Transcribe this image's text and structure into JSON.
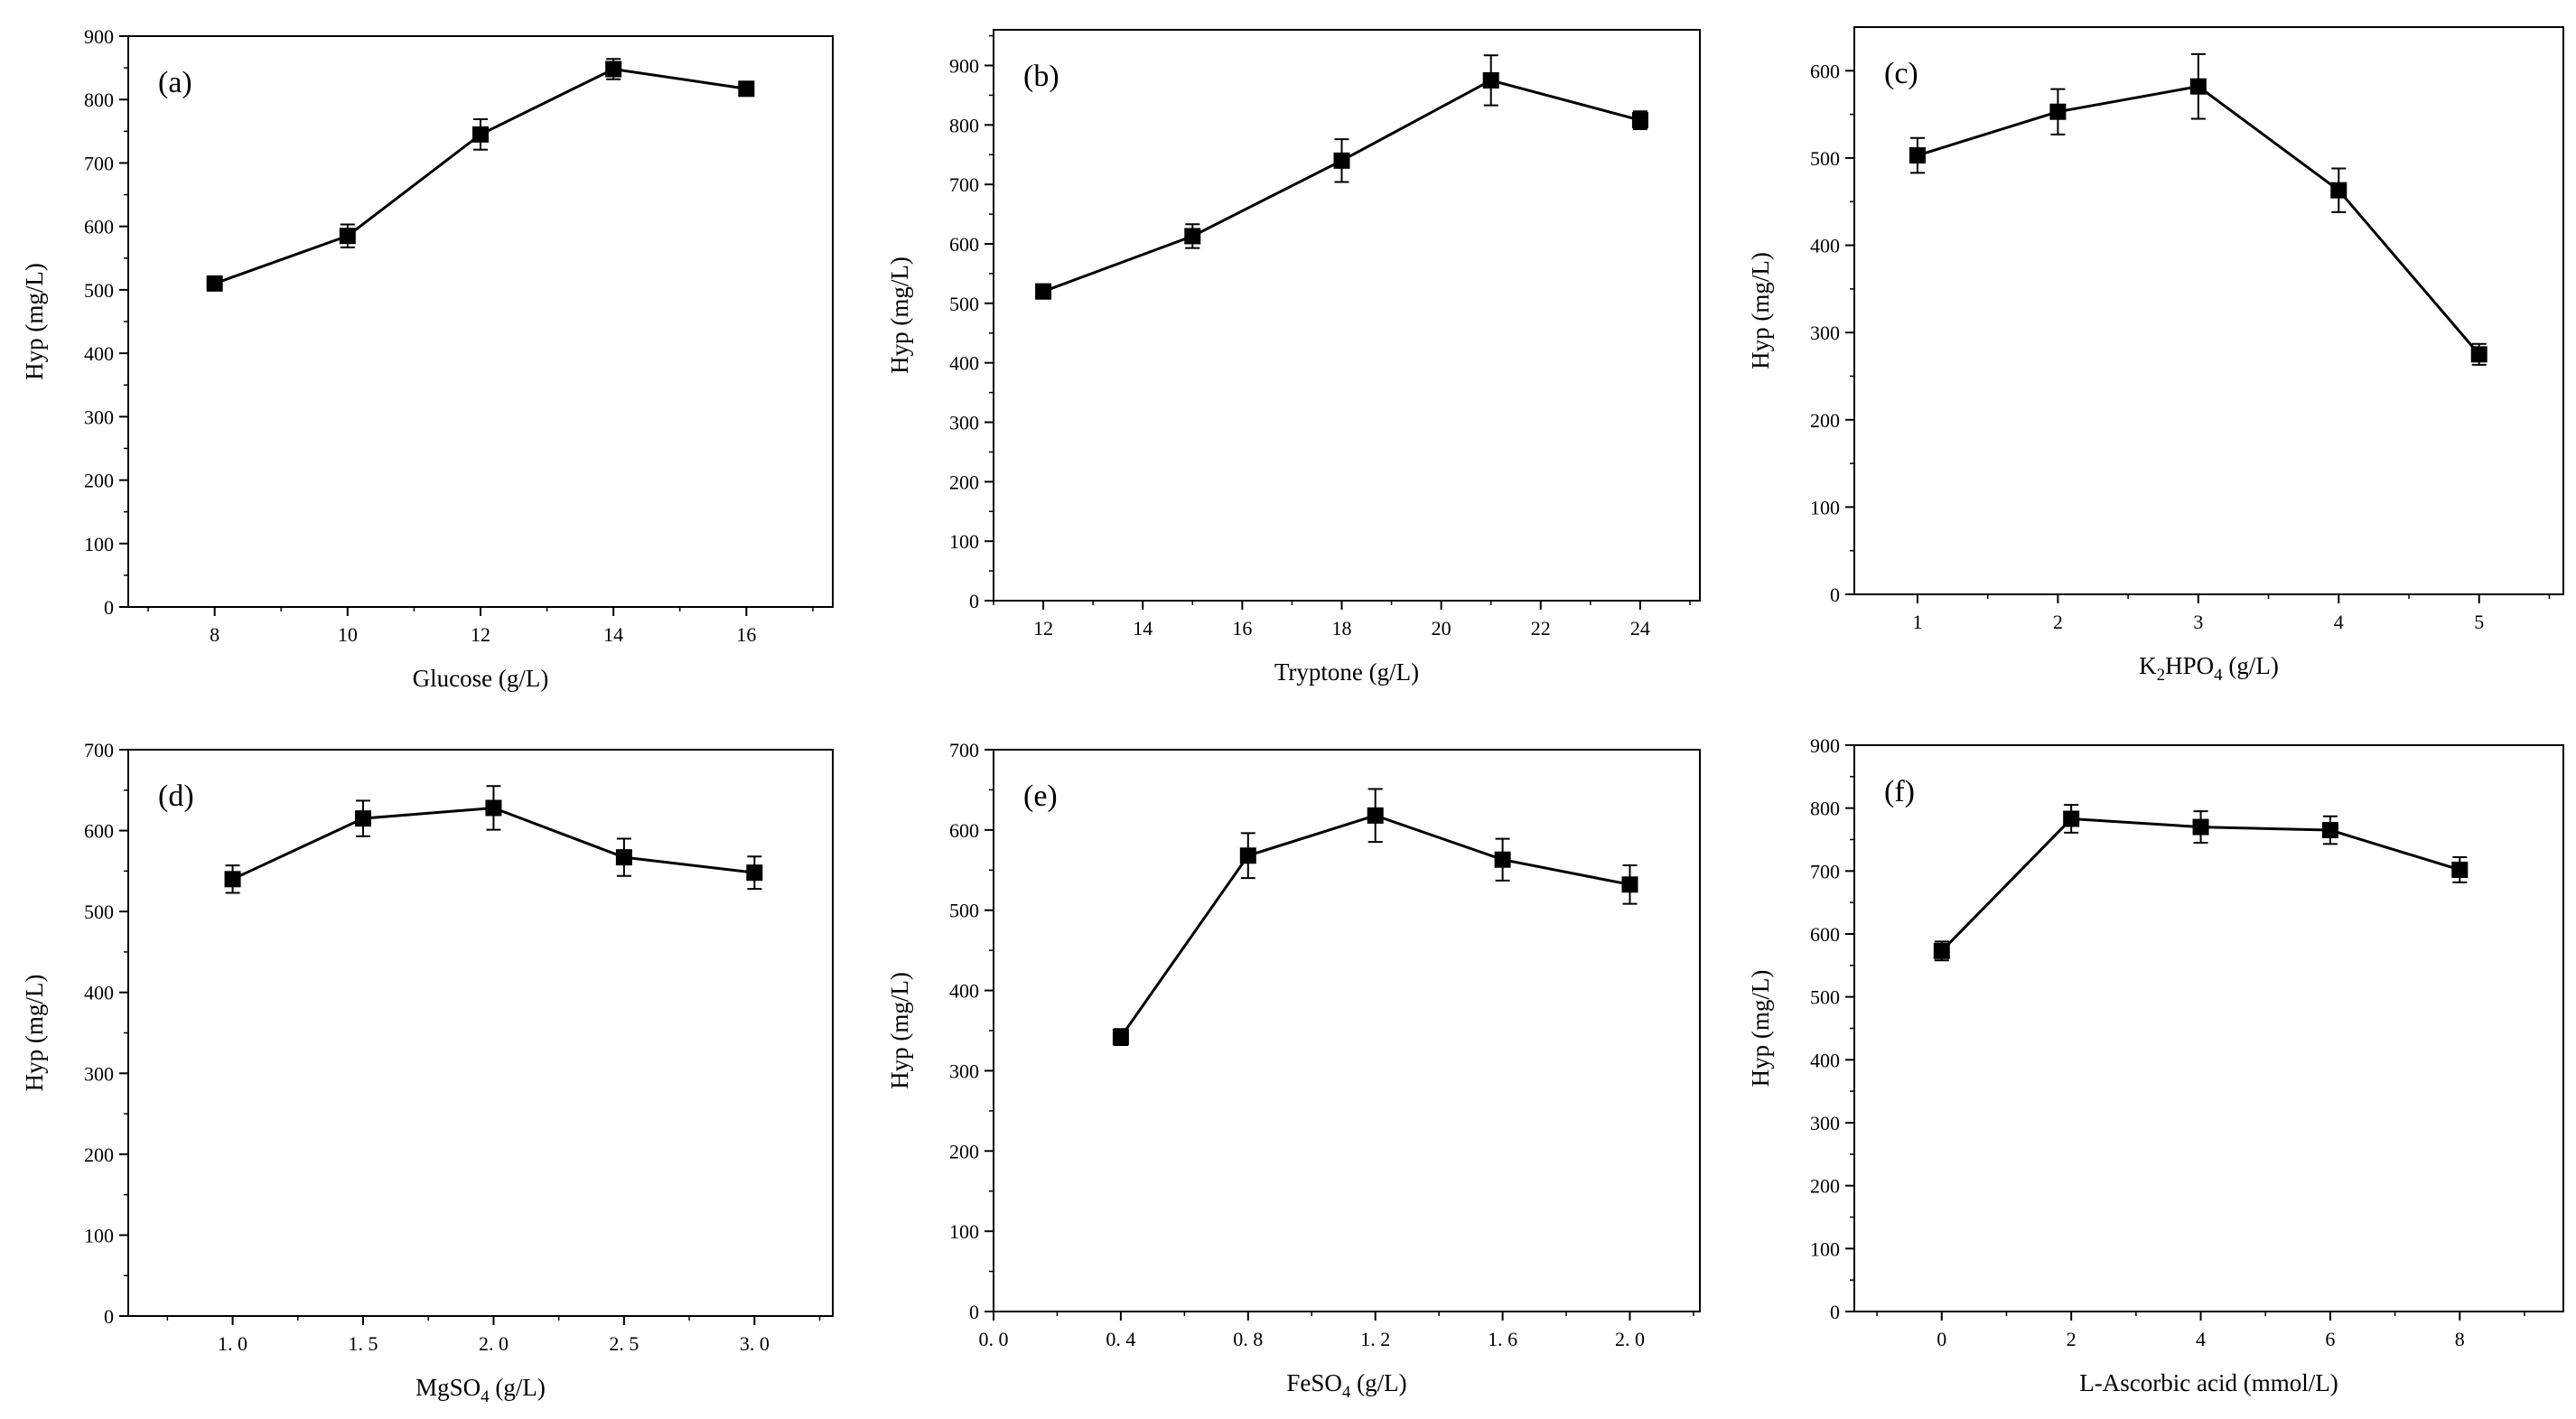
{
  "chart_data": [
    {
      "type": "line",
      "panel_label": "(a)",
      "xlabel": [
        {
          "t": "Glucose (g/L)"
        }
      ],
      "ylabel": "Hyp (mg/L)",
      "xlim": [
        6.7,
        17.3
      ],
      "ylim": [
        0,
        900
      ],
      "xticks": [
        8,
        10,
        12,
        14,
        16
      ],
      "xtick_labels": [
        "8",
        "10",
        "12",
        "14",
        "16"
      ],
      "yticks": [
        0,
        100,
        200,
        300,
        400,
        500,
        600,
        700,
        800,
        900
      ],
      "x": [
        8,
        10,
        12,
        14,
        16
      ],
      "y": [
        510,
        585,
        745,
        848,
        817
      ],
      "error": [
        9,
        18,
        24,
        16,
        6
      ]
    },
    {
      "type": "line",
      "panel_label": "(b)",
      "xlabel": [
        {
          "t": "Tryptone (g/L)"
        }
      ],
      "ylabel": "Hyp (mg/L)",
      "xlim": [
        11,
        25.2
      ],
      "ylim": [
        0,
        960
      ],
      "xticks": [
        12,
        14,
        16,
        18,
        20,
        22,
        24
      ],
      "xtick_labels": [
        "12",
        "14",
        "16",
        "18",
        "20",
        "22",
        "24"
      ],
      "yticks": [
        0,
        100,
        200,
        300,
        400,
        500,
        600,
        700,
        800,
        900
      ],
      "x": [
        12,
        15,
        18,
        21,
        24
      ],
      "y": [
        520,
        613,
        740,
        875,
        808
      ],
      "error": [
        12,
        20,
        36,
        42,
        15
      ]
    },
    {
      "type": "line",
      "panel_label": "(c)",
      "xlabel": [
        {
          "t": "K"
        },
        {
          "t": "2",
          "sub": true
        },
        {
          "t": "HPO"
        },
        {
          "t": "4",
          "sub": true
        },
        {
          "t": " (g/L)"
        }
      ],
      "ylabel": "Hyp (mg/L)",
      "xlim": [
        0.55,
        5.6
      ],
      "ylim": [
        0,
        650
      ],
      "xticks": [
        1,
        2,
        3,
        4,
        5
      ],
      "xtick_labels": [
        "1",
        "2",
        "3",
        "4",
        "5"
      ],
      "yticks": [
        0,
        100,
        200,
        300,
        400,
        500,
        600
      ],
      "x": [
        1,
        2,
        3,
        4,
        5
      ],
      "y": [
        503,
        553,
        582,
        463,
        275
      ],
      "error": [
        20,
        26,
        37,
        25,
        12
      ]
    },
    {
      "type": "line",
      "panel_label": "(d)",
      "xlabel": [
        {
          "t": "MgSO"
        },
        {
          "t": "4",
          "sub": true
        },
        {
          "t": " (g/L)"
        }
      ],
      "ylabel": "Hyp (mg/L)",
      "xlim": [
        0.6,
        3.3
      ],
      "ylim": [
        0,
        700
      ],
      "xticks": [
        1.0,
        1.5,
        2.0,
        2.5,
        3.0
      ],
      "xtick_labels": [
        "1. 0",
        "1. 5",
        "2. 0",
        "2. 5",
        "3. 0"
      ],
      "yticks": [
        0,
        100,
        200,
        300,
        400,
        500,
        600,
        700
      ],
      "x": [
        1.0,
        1.5,
        2.0,
        2.5,
        3.0
      ],
      "y": [
        540,
        615,
        628,
        567,
        548
      ],
      "error": [
        17,
        22,
        27,
        23,
        20
      ]
    },
    {
      "type": "line",
      "panel_label": "(e)",
      "xlabel": [
        {
          "t": "FeSO"
        },
        {
          "t": "4",
          "sub": true
        },
        {
          "t": " (g/L)"
        }
      ],
      "ylabel": "Hyp (mg/L)",
      "xlim": [
        0,
        2.22
      ],
      "ylim": [
        0,
        700
      ],
      "xticks": [
        0,
        0.4,
        0.8,
        1.2,
        1.6,
        2.0
      ],
      "xtick_labels": [
        "0. 0",
        "0. 4",
        "0. 8",
        "1. 2",
        "1. 6",
        "2. 0"
      ],
      "yticks": [
        0,
        100,
        200,
        300,
        400,
        500,
        600,
        700
      ],
      "x": [
        0.4,
        0.8,
        1.2,
        1.6,
        2.0
      ],
      "y": [
        342,
        568,
        618,
        563,
        532
      ],
      "error": [
        10,
        28,
        33,
        26,
        24
      ]
    },
    {
      "type": "line",
      "panel_label": "(f)",
      "xlabel": [
        {
          "t": "L-Ascorbic acid (mmol/L)"
        }
      ],
      "ylabel": "Hyp (mg/L)",
      "xlim": [
        -1.35,
        9.6
      ],
      "ylim": [
        0,
        900
      ],
      "xticks": [
        0,
        2,
        4,
        6,
        8
      ],
      "xtick_labels": [
        "0",
        "2",
        "4",
        "6",
        "8"
      ],
      "yticks": [
        0,
        100,
        200,
        300,
        400,
        500,
        600,
        700,
        800,
        900
      ],
      "x": [
        0,
        2,
        4,
        6,
        8
      ],
      "y": [
        573,
        783,
        770,
        765,
        702
      ],
      "error": [
        15,
        22,
        25,
        22,
        20
      ]
    }
  ]
}
